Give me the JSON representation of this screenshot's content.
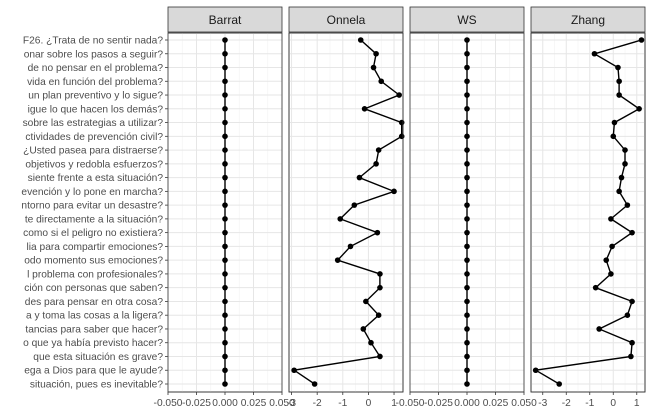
{
  "chart_data": {
    "type": "line",
    "orientation": "horizontal-profile",
    "grid": true,
    "legend": "none",
    "categories": [
      "F26. ¿Trata de no sentir nada?",
      "onar sobre los pasos a seguir?",
      "de no pensar en el problema?",
      "vida en función del problema?",
      "un plan preventivo y lo sigue?",
      "igue lo que hacen los demás?",
      "sobre las estrategias a utilizar?",
      "ctividades de prevención civil?",
      "¿Usted pasea para distraerse?",
      "objetivos y redobla esfuerzos?",
      "siente frente a esta situación?",
      "evención y lo pone en marcha?",
      "ntorno para evitar un desastre?",
      "te directamente a la situación?",
      "como si el peligro no existiera?",
      "lia para compartir emociones?",
      "odo momento sus emociones?",
      "l problema con profesionales?",
      "ción con personas que saben?",
      "des para pensar en otra cosa?",
      "a y toma las cosas a la ligera?",
      "tancias para saber que hacer?",
      "o que ya había previsto hacer?",
      "que esta situación es grave?",
      "ega a Dios para que le ayude?",
      "situación, pues es inevitable?"
    ],
    "facets": [
      {
        "name": "Barrat",
        "xlim": [
          -0.05,
          0.05
        ],
        "xticks": [
          -0.05,
          -0.025,
          0,
          0.025,
          0.05
        ],
        "xtick_labels": [
          "-0.050",
          "-0.025",
          "0.000",
          "0.025",
          "0.050"
        ],
        "values": [
          0,
          0,
          0,
          0,
          0,
          0,
          0,
          0,
          0,
          0,
          0,
          0,
          0,
          0,
          0,
          0,
          0,
          0,
          0,
          0,
          0,
          0,
          0,
          0,
          0,
          0
        ]
      },
      {
        "name": "Onnela",
        "xlim": [
          -3.1,
          1.35
        ],
        "xticks": [
          -3,
          -2,
          -1,
          0,
          1
        ],
        "xtick_labels": [
          "-3",
          "-2",
          "-1",
          "0",
          "1"
        ],
        "values": [
          -0.3,
          0.3,
          0.2,
          0.5,
          1.2,
          -0.15,
          1.3,
          1.3,
          0.4,
          0.3,
          -0.35,
          1.0,
          -0.55,
          -1.1,
          0.35,
          -0.7,
          -1.2,
          0.45,
          0.45,
          -0.1,
          0.4,
          -0.2,
          0.1,
          0.45,
          -2.9,
          -2.1
        ]
      },
      {
        "name": "WS",
        "xlim": [
          -0.05,
          0.05
        ],
        "xticks": [
          -0.05,
          -0.025,
          0,
          0.025,
          0.05
        ],
        "xtick_labels": [
          "-0.050",
          "-0.025",
          "0.000",
          "0.025",
          "0.050"
        ],
        "values": [
          0,
          0,
          0,
          0,
          0,
          0,
          0,
          0,
          0,
          0,
          0,
          0,
          0,
          0,
          0,
          0,
          0,
          0,
          0,
          0,
          0,
          0,
          0,
          0,
          0,
          0
        ]
      },
      {
        "name": "Zhang",
        "xlim": [
          -3.5,
          1.35
        ],
        "xticks": [
          -3,
          -2,
          -1,
          0,
          1
        ],
        "xtick_labels": [
          "-3",
          "-2",
          "-1",
          "0",
          "1"
        ],
        "values": [
          1.2,
          -0.8,
          0.2,
          0.25,
          0.25,
          1.1,
          0.05,
          0.0,
          0.5,
          0.5,
          0.35,
          0.25,
          0.6,
          -0.1,
          0.8,
          -0.05,
          -0.3,
          -0.1,
          -0.75,
          0.8,
          0.6,
          -0.6,
          0.8,
          0.75,
          -3.3,
          -2.3
        ]
      }
    ]
  }
}
